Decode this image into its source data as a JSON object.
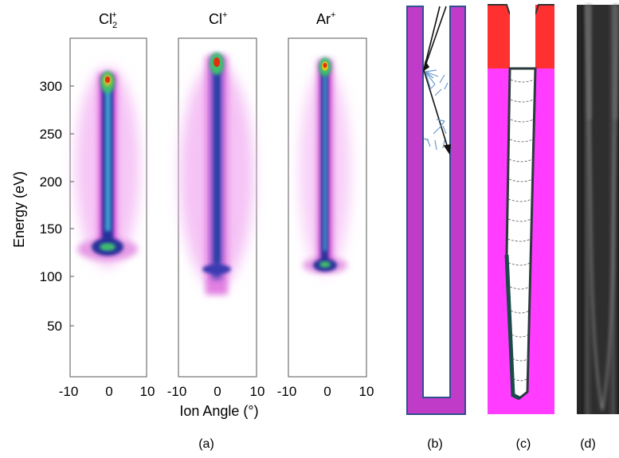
{
  "figure": {
    "panel_a": {
      "ylabel": "Energy (eV)",
      "xlabel": "Ion Angle (°)",
      "y_ticks": [
        "50",
        "100",
        "150",
        "200",
        "250",
        "300"
      ],
      "x_ticks": [
        "-10",
        "0",
        "10"
      ],
      "species": [
        {
          "name": "Cl",
          "sup": "+",
          "sub": "2"
        },
        {
          "name": "Cl",
          "sup": "+",
          "sub": ""
        },
        {
          "name": "Ar",
          "sup": "+",
          "sub": ""
        }
      ],
      "caption": "(a)"
    },
    "panel_b": {
      "caption": "(b)"
    },
    "panel_c": {
      "caption": "(c)"
    },
    "panel_d": {
      "caption": "(d)"
    },
    "colors": {
      "heat_low": "#f2b6f2",
      "heat_mid": "#e020e0",
      "heat_core": "#1a2a9a",
      "heat_green": "#3fbf6f",
      "heat_hot": "#e03010",
      "mask_magenta": "#c03cc8",
      "mask_outline": "#2f4f8f",
      "sim_magenta": "#ff3cff",
      "sim_red": "#ff3030"
    }
  },
  "chart_data": [
    {
      "type": "heatmap",
      "title": "Cl2+",
      "xlabel": "Ion Angle (°)",
      "ylabel": "Energy (eV)",
      "xlim": [
        -10,
        10
      ],
      "ylim": [
        0,
        340
      ],
      "peaks_eV": [
        130,
        305
      ],
      "angular_spread_deg": 2
    },
    {
      "type": "heatmap",
      "title": "Cl+",
      "xlabel": "Ion Angle (°)",
      "ylim": [
        0,
        340
      ],
      "xlim": [
        -10,
        10
      ],
      "peaks_eV": [
        110,
        320
      ],
      "angular_spread_deg": 2
    },
    {
      "type": "heatmap",
      "title": "Ar+",
      "xlabel": "Ion Angle (°)",
      "xlim": [
        -10,
        10
      ],
      "ylim": [
        0,
        340
      ],
      "peaks_eV": [
        112,
        318
      ],
      "angular_spread_deg": 1.5
    }
  ]
}
